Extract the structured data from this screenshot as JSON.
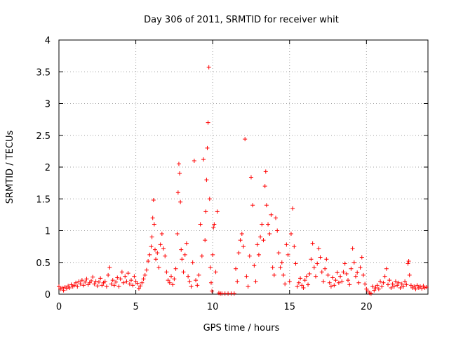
{
  "chart_data": {
    "type": "scatter",
    "title": "Day 306 of 2011, SRMTID for receiver whit",
    "xlabel": "GPS time / hours",
    "ylabel": "SRMTID / TECUs",
    "xlim": [
      0,
      24
    ],
    "ylim": [
      0,
      4
    ],
    "xticks": [
      0,
      5,
      10,
      15,
      20
    ],
    "xtick_labels": [
      "0",
      "5",
      "10",
      "15",
      "20"
    ],
    "yticks": [
      0,
      0.5,
      1,
      1.5,
      2,
      2.5,
      3,
      3.5,
      4
    ],
    "ytick_labels": [
      "0",
      "0.5",
      "1",
      "1.5",
      "2",
      "2.5",
      "3",
      "3.5",
      "4"
    ],
    "grid": true,
    "marker": "+",
    "series": [
      {
        "name": "SRMTID",
        "color": "#ff0000",
        "points": [
          [
            0.0,
            0.12
          ],
          [
            0.1,
            0.08
          ],
          [
            0.2,
            0.1
          ],
          [
            0.3,
            0.06
          ],
          [
            0.4,
            0.11
          ],
          [
            0.5,
            0.09
          ],
          [
            0.6,
            0.13
          ],
          [
            0.7,
            0.1
          ],
          [
            0.8,
            0.15
          ],
          [
            0.9,
            0.12
          ],
          [
            1.0,
            0.14
          ],
          [
            1.1,
            0.18
          ],
          [
            1.2,
            0.12
          ],
          [
            1.3,
            0.2
          ],
          [
            1.4,
            0.16
          ],
          [
            1.5,
            0.22
          ],
          [
            1.6,
            0.14
          ],
          [
            1.7,
            0.19
          ],
          [
            1.8,
            0.24
          ],
          [
            1.9,
            0.15
          ],
          [
            2.0,
            0.18
          ],
          [
            2.1,
            0.21
          ],
          [
            2.2,
            0.27
          ],
          [
            2.3,
            0.16
          ],
          [
            2.4,
            0.2
          ],
          [
            2.5,
            0.13
          ],
          [
            2.6,
            0.19
          ],
          [
            2.7,
            0.25
          ],
          [
            2.8,
            0.14
          ],
          [
            2.9,
            0.18
          ],
          [
            3.0,
            0.2
          ],
          [
            3.1,
            0.12
          ],
          [
            3.2,
            0.3
          ],
          [
            3.3,
            0.42
          ],
          [
            3.4,
            0.16
          ],
          [
            3.5,
            0.22
          ],
          [
            3.6,
            0.14
          ],
          [
            3.7,
            0.19
          ],
          [
            3.8,
            0.26
          ],
          [
            3.9,
            0.12
          ],
          [
            4.0,
            0.24
          ],
          [
            4.1,
            0.35
          ],
          [
            4.2,
            0.18
          ],
          [
            4.3,
            0.28
          ],
          [
            4.4,
            0.2
          ],
          [
            4.5,
            0.33
          ],
          [
            4.6,
            0.16
          ],
          [
            4.7,
            0.22
          ],
          [
            4.8,
            0.14
          ],
          [
            4.9,
            0.28
          ],
          [
            5.0,
            0.2
          ],
          [
            5.1,
            0.17
          ],
          [
            5.2,
            0.09
          ],
          [
            5.3,
            0.13
          ],
          [
            5.4,
            0.18
          ],
          [
            5.5,
            0.24
          ],
          [
            5.6,
            0.3
          ],
          [
            5.7,
            0.38
          ],
          [
            5.8,
            0.52
          ],
          [
            5.9,
            0.62
          ],
          [
            6.0,
            0.75
          ],
          [
            6.05,
            0.9
          ],
          [
            6.1,
            1.2
          ],
          [
            6.15,
            1.48
          ],
          [
            6.2,
            1.1
          ],
          [
            6.25,
            0.7
          ],
          [
            6.3,
            0.55
          ],
          [
            6.4,
            0.65
          ],
          [
            6.5,
            0.42
          ],
          [
            6.6,
            0.78
          ],
          [
            6.7,
            0.95
          ],
          [
            6.8,
            0.72
          ],
          [
            6.9,
            0.6
          ],
          [
            7.0,
            0.35
          ],
          [
            7.1,
            0.22
          ],
          [
            7.2,
            0.18
          ],
          [
            7.3,
            0.28
          ],
          [
            7.4,
            0.15
          ],
          [
            7.5,
            0.24
          ],
          [
            7.6,
            0.4
          ],
          [
            7.7,
            0.95
          ],
          [
            7.75,
            1.6
          ],
          [
            7.8,
            2.05
          ],
          [
            7.85,
            1.9
          ],
          [
            7.9,
            1.45
          ],
          [
            7.95,
            0.7
          ],
          [
            8.0,
            0.55
          ],
          [
            8.1,
            0.35
          ],
          [
            8.2,
            0.62
          ],
          [
            8.3,
            0.8
          ],
          [
            8.4,
            0.28
          ],
          [
            8.5,
            0.2
          ],
          [
            8.6,
            0.12
          ],
          [
            8.7,
            0.5
          ],
          [
            8.8,
            2.1
          ],
          [
            8.9,
            0.22
          ],
          [
            9.0,
            0.14
          ],
          [
            9.1,
            0.3
          ],
          [
            9.2,
            1.1
          ],
          [
            9.3,
            0.6
          ],
          [
            9.4,
            2.12
          ],
          [
            9.5,
            0.85
          ],
          [
            9.55,
            1.3
          ],
          [
            9.6,
            1.8
          ],
          [
            9.65,
            2.3
          ],
          [
            9.7,
            2.7
          ],
          [
            9.75,
            3.57
          ],
          [
            9.8,
            1.5
          ],
          [
            9.85,
            0.42
          ],
          [
            9.9,
            0.18
          ],
          [
            9.95,
            0.05
          ],
          [
            10.0,
            0.62
          ],
          [
            10.05,
            1.05
          ],
          [
            10.1,
            1.1
          ],
          [
            10.2,
            0.35
          ],
          [
            10.3,
            1.3
          ],
          [
            10.4,
            0.02
          ],
          [
            10.5,
            0.01
          ],
          [
            10.6,
            0.01
          ],
          [
            10.8,
            0.01
          ],
          [
            11.0,
            0.01
          ],
          [
            11.2,
            0.01
          ],
          [
            11.4,
            0.01
          ],
          [
            11.5,
            0.4
          ],
          [
            11.6,
            0.2
          ],
          [
            11.7,
            0.65
          ],
          [
            11.8,
            0.85
          ],
          [
            11.9,
            0.95
          ],
          [
            12.0,
            0.75
          ],
          [
            12.1,
            2.44
          ],
          [
            12.2,
            0.28
          ],
          [
            12.3,
            0.12
          ],
          [
            12.4,
            0.6
          ],
          [
            12.5,
            1.84
          ],
          [
            12.6,
            1.4
          ],
          [
            12.7,
            0.45
          ],
          [
            12.8,
            0.2
          ],
          [
            12.9,
            0.78
          ],
          [
            13.0,
            0.62
          ],
          [
            13.1,
            0.9
          ],
          [
            13.2,
            1.1
          ],
          [
            13.3,
            0.85
          ],
          [
            13.4,
            1.7
          ],
          [
            13.45,
            1.93
          ],
          [
            13.5,
            1.4
          ],
          [
            13.6,
            1.1
          ],
          [
            13.7,
            0.95
          ],
          [
            13.8,
            1.25
          ],
          [
            13.9,
            0.42
          ],
          [
            14.0,
            0.3
          ],
          [
            14.1,
            1.2
          ],
          [
            14.2,
            1.0
          ],
          [
            14.3,
            0.65
          ],
          [
            14.4,
            0.42
          ],
          [
            14.5,
            0.5
          ],
          [
            14.6,
            0.3
          ],
          [
            14.7,
            0.16
          ],
          [
            14.8,
            0.78
          ],
          [
            14.9,
            0.62
          ],
          [
            15.0,
            0.2
          ],
          [
            15.1,
            0.95
          ],
          [
            15.2,
            1.35
          ],
          [
            15.3,
            0.75
          ],
          [
            15.4,
            0.48
          ],
          [
            15.5,
            0.12
          ],
          [
            15.6,
            0.18
          ],
          [
            15.7,
            0.25
          ],
          [
            15.8,
            0.14
          ],
          [
            15.9,
            0.1
          ],
          [
            16.0,
            0.22
          ],
          [
            16.1,
            0.28
          ],
          [
            16.2,
            0.15
          ],
          [
            16.3,
            0.32
          ],
          [
            16.4,
            0.55
          ],
          [
            16.5,
            0.8
          ],
          [
            16.6,
            0.42
          ],
          [
            16.7,
            0.28
          ],
          [
            16.8,
            0.48
          ],
          [
            16.9,
            0.72
          ],
          [
            17.0,
            0.58
          ],
          [
            17.1,
            0.35
          ],
          [
            17.2,
            0.2
          ],
          [
            17.3,
            0.4
          ],
          [
            17.4,
            0.55
          ],
          [
            17.5,
            0.3
          ],
          [
            17.6,
            0.18
          ],
          [
            17.7,
            0.12
          ],
          [
            17.8,
            0.26
          ],
          [
            17.9,
            0.14
          ],
          [
            18.0,
            0.22
          ],
          [
            18.1,
            0.34
          ],
          [
            18.2,
            0.18
          ],
          [
            18.3,
            0.28
          ],
          [
            18.4,
            0.2
          ],
          [
            18.5,
            0.35
          ],
          [
            18.6,
            0.48
          ],
          [
            18.7,
            0.32
          ],
          [
            18.8,
            0.22
          ],
          [
            18.9,
            0.15
          ],
          [
            19.0,
            0.4
          ],
          [
            19.1,
            0.72
          ],
          [
            19.2,
            0.5
          ],
          [
            19.3,
            0.28
          ],
          [
            19.4,
            0.34
          ],
          [
            19.5,
            0.18
          ],
          [
            19.6,
            0.42
          ],
          [
            19.7,
            0.58
          ],
          [
            19.8,
            0.3
          ],
          [
            19.9,
            0.16
          ],
          [
            20.0,
            0.08
          ],
          [
            20.1,
            0.05
          ],
          [
            20.2,
            0.02
          ],
          [
            20.3,
            0.01
          ],
          [
            20.4,
            0.12
          ],
          [
            20.5,
            0.06
          ],
          [
            20.6,
            0.1
          ],
          [
            20.7,
            0.14
          ],
          [
            20.8,
            0.08
          ],
          [
            20.9,
            0.2
          ],
          [
            21.0,
            0.12
          ],
          [
            21.1,
            0.18
          ],
          [
            21.2,
            0.28
          ],
          [
            21.3,
            0.4
          ],
          [
            21.4,
            0.15
          ],
          [
            21.5,
            0.22
          ],
          [
            21.6,
            0.1
          ],
          [
            21.7,
            0.16
          ],
          [
            21.8,
            0.12
          ],
          [
            21.9,
            0.2
          ],
          [
            22.0,
            0.14
          ],
          [
            22.1,
            0.18
          ],
          [
            22.2,
            0.1
          ],
          [
            22.3,
            0.16
          ],
          [
            22.4,
            0.12
          ],
          [
            22.5,
            0.2
          ],
          [
            22.6,
            0.15
          ],
          [
            22.7,
            0.48
          ],
          [
            22.75,
            0.52
          ],
          [
            22.8,
            0.3
          ],
          [
            22.9,
            0.14
          ],
          [
            23.0,
            0.1
          ],
          [
            23.1,
            0.12
          ],
          [
            23.2,
            0.08
          ],
          [
            23.3,
            0.14
          ],
          [
            23.4,
            0.1
          ],
          [
            23.5,
            0.12
          ],
          [
            23.6,
            0.09
          ],
          [
            23.7,
            0.13
          ],
          [
            23.8,
            0.1
          ],
          [
            23.9,
            0.11
          ]
        ]
      }
    ]
  }
}
